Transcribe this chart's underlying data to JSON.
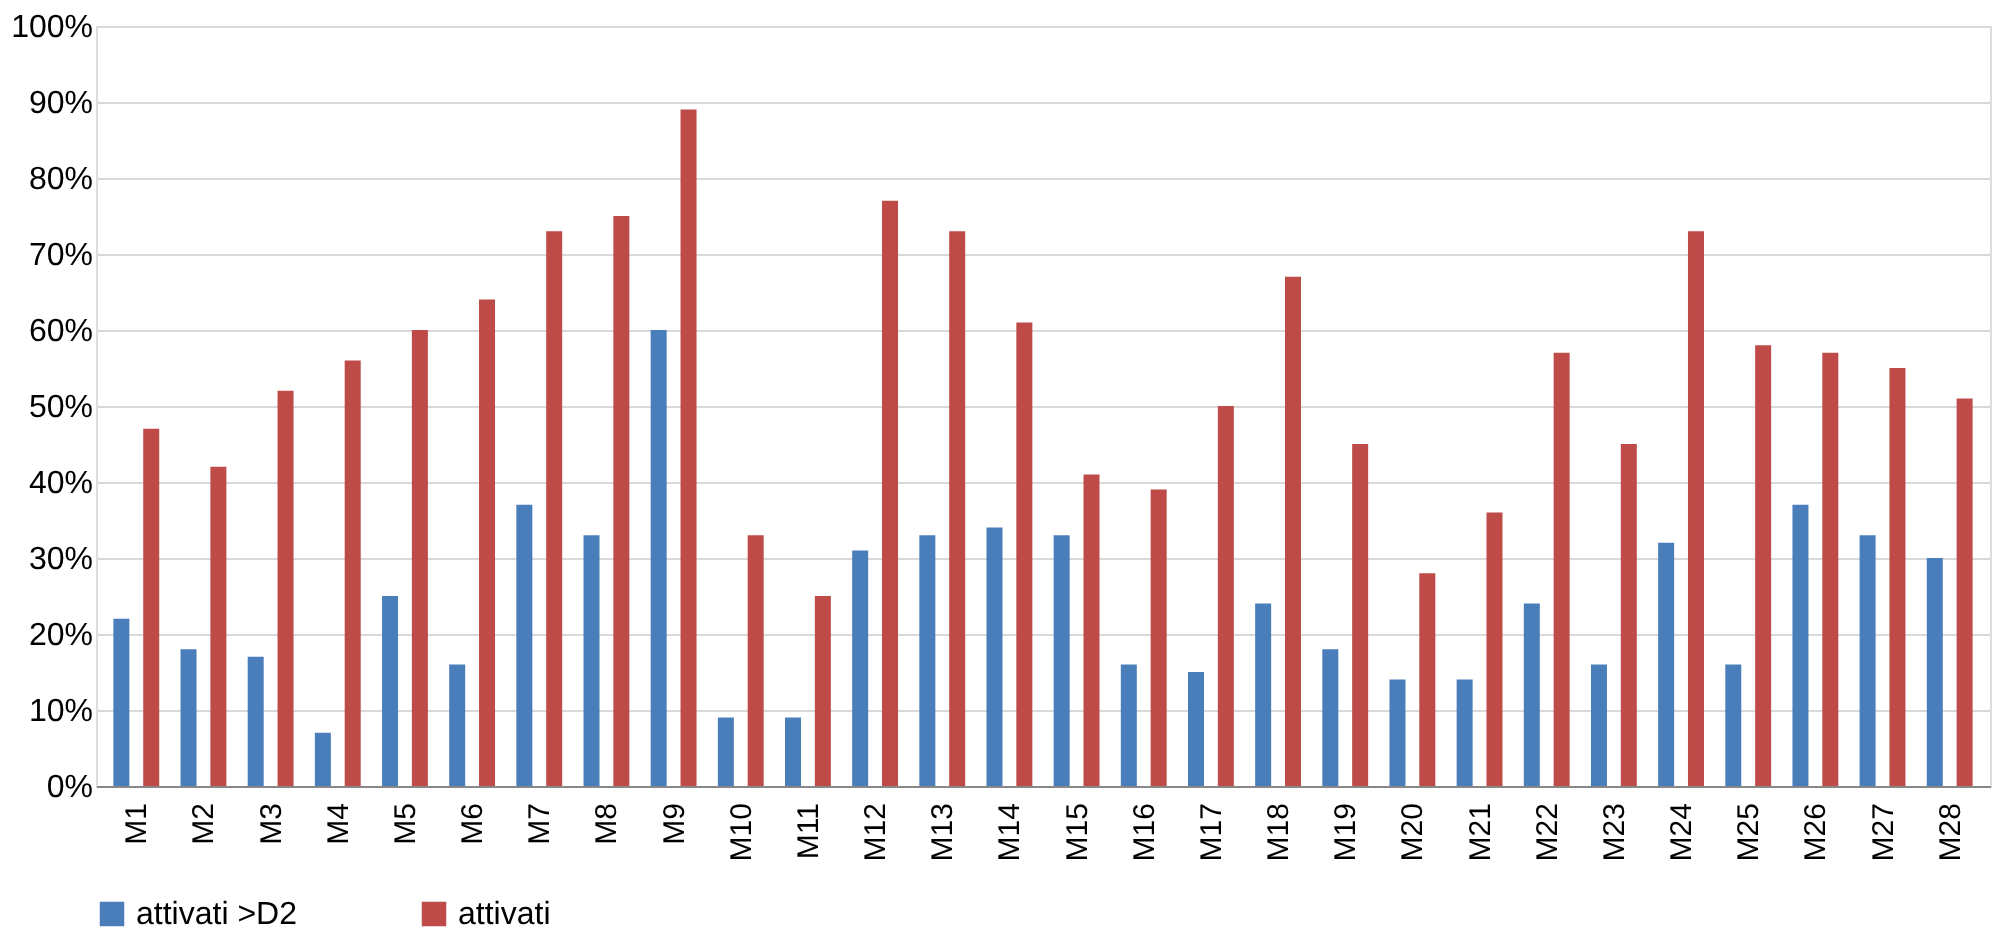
{
  "chart_data": {
    "type": "bar",
    "categories": [
      "M1",
      "M2",
      "M3",
      "M4",
      "M5",
      "M6",
      "M7",
      "M8",
      "M9",
      "M10",
      "M11",
      "M12",
      "M13",
      "M14",
      "M15",
      "M16",
      "M17",
      "M18",
      "M19",
      "M20",
      "M21",
      "M22",
      "M23",
      "M24",
      "M25",
      "M26",
      "M27",
      "M28"
    ],
    "series": [
      {
        "name": "attivati >D2",
        "color": "#4a7ebb",
        "values": [
          22,
          18,
          17,
          7,
          25,
          16,
          37,
          33,
          60,
          9,
          9,
          31,
          33,
          34,
          33,
          16,
          15,
          24,
          18,
          14,
          14,
          24,
          16,
          32,
          16,
          37,
          33,
          30
        ]
      },
      {
        "name": "attivati",
        "color": "#be4b48",
        "values": [
          47,
          42,
          52,
          56,
          60,
          64,
          73,
          75,
          89,
          33,
          25,
          77,
          73,
          61,
          41,
          39,
          50,
          67,
          45,
          28,
          36,
          57,
          45,
          73,
          58,
          57,
          55,
          51
        ]
      }
    ],
    "ylim": [
      0,
      100
    ],
    "yticks": [
      {
        "value": 0,
        "label": "0%"
      },
      {
        "value": 10,
        "label": "10%"
      },
      {
        "value": 20,
        "label": "20%"
      },
      {
        "value": 30,
        "label": "30%"
      },
      {
        "value": 40,
        "label": "40%"
      },
      {
        "value": 50,
        "label": "50%"
      },
      {
        "value": 60,
        "label": "60%"
      },
      {
        "value": 70,
        "label": "70%"
      },
      {
        "value": 80,
        "label": "80%"
      },
      {
        "value": 90,
        "label": "90%"
      },
      {
        "value": 100,
        "label": "100%"
      }
    ],
    "grid": "y",
    "legend": "bottom"
  }
}
